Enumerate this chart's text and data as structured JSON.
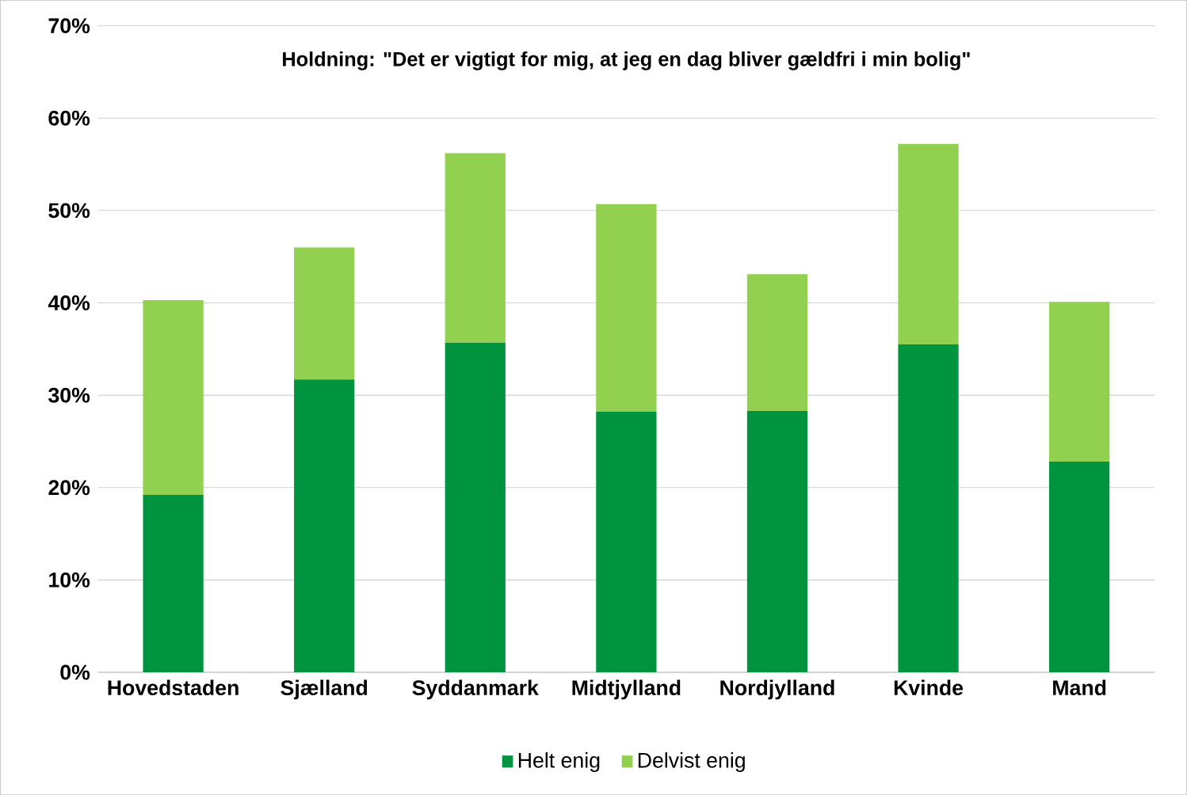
{
  "chart_data": {
    "type": "bar",
    "stacked": true,
    "title": "Holdning: \"Det er vigtigt for mig, at jeg en dag bliver gældfri i min bolig\"",
    "categories": [
      "Hovedstaden",
      "Sjælland",
      "Syddanmark",
      "Midtjylland",
      "Nordjylland",
      "Kvinde",
      "Mand"
    ],
    "series": [
      {
        "name": "Helt enig",
        "color": "#00943f",
        "values": [
          19.2,
          31.7,
          35.7,
          28.2,
          28.3,
          35.5,
          22.8
        ]
      },
      {
        "name": "Delvist enig",
        "color": "#92d050",
        "values": [
          21.1,
          14.3,
          20.5,
          22.5,
          14.8,
          21.7,
          17.3
        ]
      }
    ],
    "ylim": [
      0,
      70
    ],
    "yticks": [
      {
        "value": 0,
        "label": "0%"
      },
      {
        "value": 10,
        "label": "10%"
      },
      {
        "value": 20,
        "label": "20%"
      },
      {
        "value": 30,
        "label": "30%"
      },
      {
        "value": 40,
        "label": "40%"
      },
      {
        "value": 50,
        "label": "50%"
      },
      {
        "value": 60,
        "label": "60%"
      },
      {
        "value": 70,
        "label": "70%"
      }
    ],
    "grid": "y",
    "legend": "bottom"
  }
}
